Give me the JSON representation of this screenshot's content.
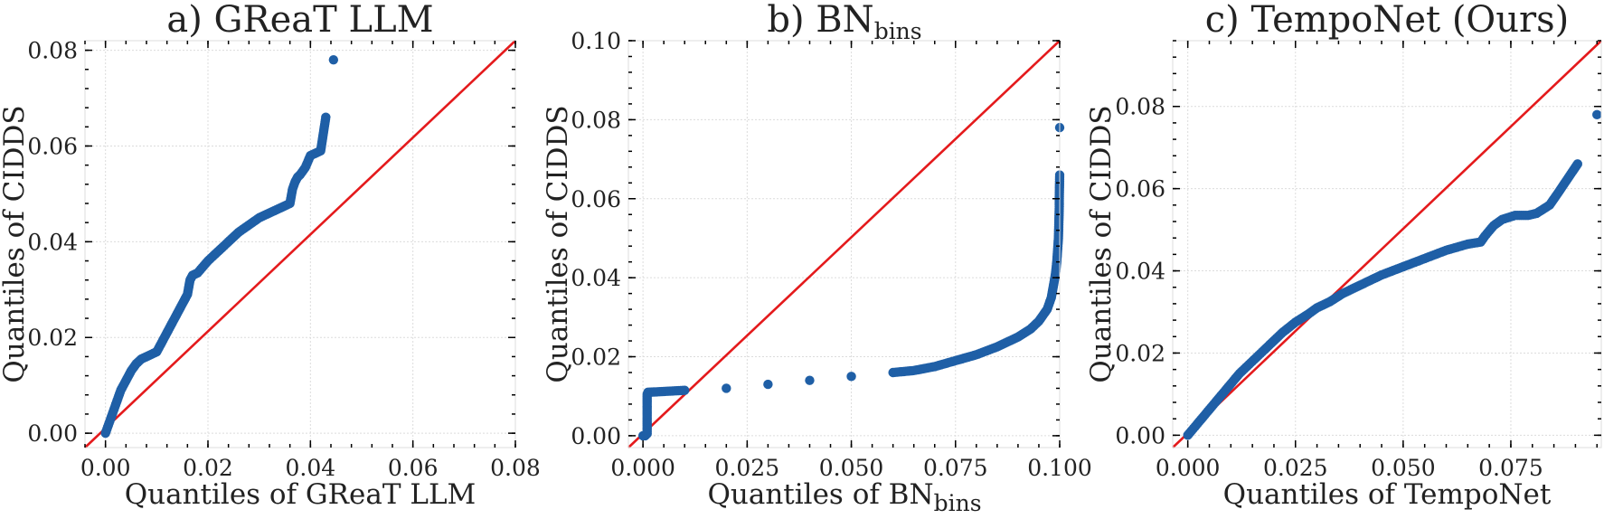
{
  "chart_data": [
    {
      "type": "scatter",
      "title_main": "a) GReaT LLM",
      "title_sub": "",
      "xlabel_main": "Quantiles of GReaT LLM",
      "xlabel_sub": "",
      "ylabel": "Quantiles of CIDDS",
      "xlim": [
        -0.004,
        0.08
      ],
      "ylim": [
        -0.003,
        0.082
      ],
      "xticks": [
        0.0,
        0.02,
        0.04,
        0.06,
        0.08
      ],
      "xtick_labels": [
        "0.00",
        "0.02",
        "0.04",
        "0.06",
        "0.08"
      ],
      "yticks": [
        0.0,
        0.02,
        0.04,
        0.06,
        0.08
      ],
      "ytick_labels": [
        "0.00",
        "0.02",
        "0.04",
        "0.06",
        "0.08"
      ],
      "reference_line": "y = x",
      "series": [
        {
          "name": "Quantiles",
          "x": [
            0.0,
            0.001,
            0.002,
            0.003,
            0.004,
            0.005,
            0.006,
            0.007,
            0.008,
            0.009,
            0.01,
            0.011,
            0.012,
            0.013,
            0.014,
            0.015,
            0.016,
            0.0165,
            0.017,
            0.018,
            0.02,
            0.022,
            0.024,
            0.026,
            0.028,
            0.03,
            0.032,
            0.034,
            0.035,
            0.036,
            0.0365,
            0.037,
            0.0375,
            0.038,
            0.039,
            0.04,
            0.042,
            0.043,
            0.0445
          ],
          "y": [
            0.0,
            0.003,
            0.006,
            0.009,
            0.011,
            0.013,
            0.0145,
            0.0155,
            0.016,
            0.0165,
            0.017,
            0.019,
            0.021,
            0.023,
            0.025,
            0.027,
            0.029,
            0.032,
            0.033,
            0.0335,
            0.036,
            0.038,
            0.04,
            0.042,
            0.0435,
            0.045,
            0.046,
            0.047,
            0.0475,
            0.048,
            0.051,
            0.0525,
            0.0535,
            0.054,
            0.0555,
            0.058,
            0.059,
            0.066,
            0.078
          ]
        }
      ]
    },
    {
      "type": "scatter",
      "title_main": "b) BN",
      "title_sub": "bins",
      "xlabel_main": "Quantiles of BN",
      "xlabel_sub": "bins",
      "ylabel": "Quantiles of CIDDS",
      "xlim": [
        -0.0035,
        0.1
      ],
      "ylim": [
        -0.003,
        0.1
      ],
      "xticks": [
        0.0,
        0.025,
        0.05,
        0.075,
        0.1
      ],
      "xtick_labels": [
        "0.000",
        "0.025",
        "0.050",
        "0.075",
        "0.100"
      ],
      "yticks": [
        0.0,
        0.02,
        0.04,
        0.06,
        0.08,
        0.1
      ],
      "ytick_labels": [
        "0.00",
        "0.02",
        "0.04",
        "0.06",
        "0.08",
        "0.10"
      ],
      "reference_line": "y = x",
      "series": [
        {
          "name": "Quantiles",
          "x": [
            0.0,
            0.0005,
            0.001,
            0.001,
            0.001,
            0.001,
            0.001,
            0.0012,
            0.005,
            0.01,
            0.02,
            0.03,
            0.04,
            0.05,
            0.06,
            0.065,
            0.07,
            0.075,
            0.08,
            0.085,
            0.09,
            0.093,
            0.095,
            0.097,
            0.098,
            0.0985,
            0.099,
            0.0993,
            0.0995,
            0.0997,
            0.0998,
            0.0999,
            0.0999,
            0.1,
            0.1
          ],
          "y": [
            0.0,
            0.0,
            0.0005,
            0.003,
            0.006,
            0.009,
            0.0105,
            0.011,
            0.0112,
            0.0115,
            0.012,
            0.013,
            0.014,
            0.015,
            0.016,
            0.0165,
            0.0175,
            0.019,
            0.0205,
            0.0225,
            0.025,
            0.027,
            0.029,
            0.032,
            0.035,
            0.038,
            0.041,
            0.044,
            0.047,
            0.05,
            0.054,
            0.058,
            0.06,
            0.066,
            0.078
          ]
        }
      ]
    },
    {
      "type": "scatter",
      "title_main": "c) TempoNet (Ours)",
      "title_sub": "",
      "xlabel_main": "Quantiles of TempoNet",
      "xlabel_sub": "",
      "ylabel": "Quantiles of CIDDS",
      "xlim": [
        -0.0035,
        0.096
      ],
      "ylim": [
        -0.003,
        0.096
      ],
      "xticks": [
        0.0,
        0.025,
        0.05,
        0.075
      ],
      "xtick_labels": [
        "0.000",
        "0.025",
        "0.050",
        "0.075"
      ],
      "yticks": [
        0.0,
        0.02,
        0.04,
        0.06,
        0.08
      ],
      "ytick_labels": [
        "0.00",
        "0.02",
        "0.04",
        "0.06",
        "0.08"
      ],
      "reference_line": "y = x",
      "series": [
        {
          "name": "Quantiles",
          "x": [
            0.0,
            0.002,
            0.004,
            0.006,
            0.008,
            0.01,
            0.012,
            0.015,
            0.018,
            0.02,
            0.022,
            0.025,
            0.028,
            0.03,
            0.033,
            0.036,
            0.04,
            0.045,
            0.05,
            0.055,
            0.06,
            0.065,
            0.068,
            0.069,
            0.071,
            0.073,
            0.076,
            0.079,
            0.081,
            0.084,
            0.086,
            0.0905,
            0.095
          ],
          "y": [
            0.0,
            0.0025,
            0.005,
            0.0075,
            0.01,
            0.0125,
            0.015,
            0.018,
            0.021,
            0.023,
            0.025,
            0.0275,
            0.0295,
            0.031,
            0.0325,
            0.0345,
            0.0365,
            0.039,
            0.041,
            0.043,
            0.045,
            0.0465,
            0.047,
            0.0485,
            0.051,
            0.0525,
            0.0535,
            0.0535,
            0.054,
            0.056,
            0.059,
            0.066,
            0.078
          ]
        }
      ]
    }
  ]
}
